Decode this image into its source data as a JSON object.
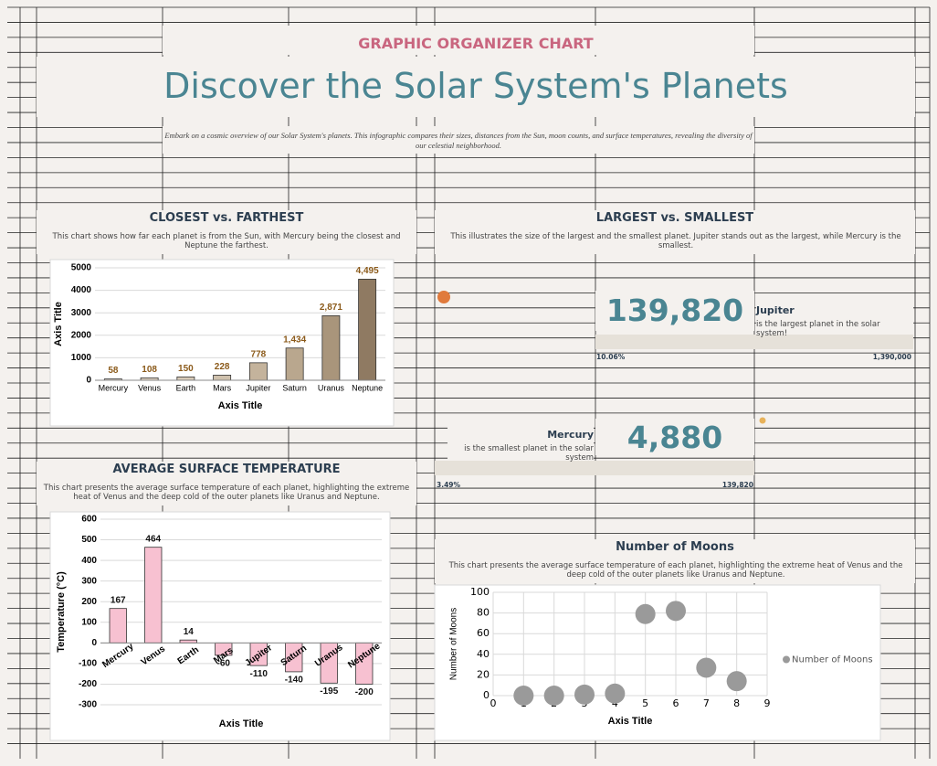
{
  "header": {
    "kicker": "GRAPHIC ORGANIZER CHART",
    "title": "Discover the Solar System's Planets",
    "description": "Embark on a cosmic overview of our Solar System's planets. This infographic compares their sizes, distances from the Sun, moon counts, and surface temperatures, revealing the diversity of our celestial neighborhood."
  },
  "comparison": {
    "title": "LARGEST vs. SMALLEST",
    "subtitle": "This illustrates the size of the largest and the smallest planet. Jupiter stands out as the largest, while Mercury is the smallest.",
    "largest": {
      "value": "139,820",
      "name": "Jupiter",
      "text": "is the largest planet in the solar system!",
      "percent": "10.06%",
      "max": "1,390,000"
    },
    "smallest": {
      "value": "4,880",
      "name": "Mercury",
      "text": "is the smallest planet in the solar system",
      "percent": "3.49%",
      "max": "139,820"
    }
  },
  "chart_data": [
    {
      "type": "bar",
      "title": "CLOSEST vs. FARTHEST",
      "subtitle": "This chart shows how far each planet is from the Sun, with Mercury being the closest and Neptune the farthest.",
      "categories": [
        "Mercury",
        "Venus",
        "Earth",
        "Mars",
        "Jupiter",
        "Saturn",
        "Uranus",
        "Neptune"
      ],
      "values": [
        58,
        108,
        150,
        228,
        778,
        1434,
        2871,
        4495
      ],
      "value_labels": [
        "58",
        "108",
        "150",
        "228",
        "778",
        "1,434",
        "2,871",
        "4,495"
      ],
      "colors": [
        "#e3d9cb",
        "#ddd1c1",
        "#d6c9b7",
        "#cfc1ad",
        "#c4b39c",
        "#b9a78e",
        "#a9957b",
        "#8f7a62"
      ],
      "ylim": [
        0,
        5000
      ],
      "yticks": [
        0,
        1000,
        2000,
        3000,
        4000,
        5000
      ],
      "grid": true,
      "xlabel": "Axis Title",
      "ylabel": "Axis Title"
    },
    {
      "type": "bar",
      "title": "AVERAGE SURFACE TEMPERATURE",
      "subtitle": "This chart presents the average surface temperature of each planet, highlighting the extreme heat of Venus and the deep cold of the outer planets like Uranus and Neptune.",
      "categories": [
        "Mercury",
        "Venus",
        "Earth",
        "Mars",
        "Jupiter",
        "Saturn",
        "Uranus",
        "Neptune"
      ],
      "values": [
        167,
        464,
        14,
        -60,
        -110,
        -140,
        -195,
        -200
      ],
      "color": "#f7c1d1",
      "ylim": [
        -300,
        600
      ],
      "yticks": [
        -300,
        -200,
        -100,
        0,
        100,
        200,
        300,
        400,
        500,
        600
      ],
      "grid": true,
      "xlabel": "Axis Title",
      "ylabel": "Temperature (°C)"
    },
    {
      "type": "scatter",
      "title": "Number of Moons",
      "subtitle": "This chart presents the average surface temperature of each planet, highlighting the extreme heat of Venus and the deep cold of the outer planets like Uranus and Neptune.",
      "series": [
        {
          "name": "Number of Moons",
          "color": "#9a9a9a",
          "x": [
            1,
            2,
            3,
            4,
            5,
            6,
            7,
            8
          ],
          "values": [
            0,
            0,
            1,
            2,
            79,
            82,
            27,
            14
          ]
        }
      ],
      "xlim": [
        0,
        9
      ],
      "xticks": [
        0,
        1,
        2,
        3,
        4,
        5,
        6,
        7,
        8,
        9
      ],
      "ylim": [
        0,
        100
      ],
      "yticks": [
        0,
        20,
        40,
        60,
        80,
        100
      ],
      "grid": true,
      "xlabel": "Axis Title",
      "ylabel": "Number of Moons",
      "legend": "right"
    }
  ]
}
